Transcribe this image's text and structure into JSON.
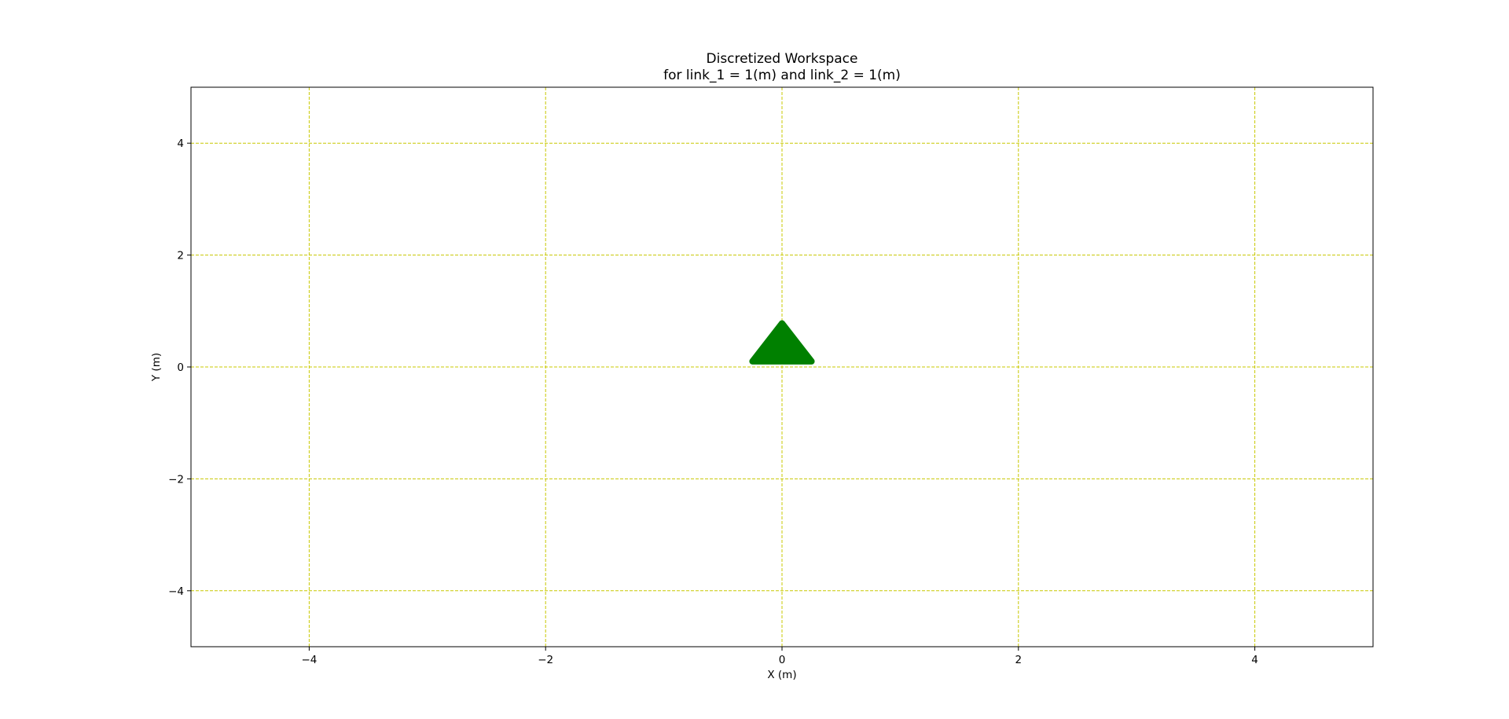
{
  "chart_data": {
    "type": "scatter",
    "title_line1": "Discretized Workspace",
    "title_line2": "for link_1 = 1(m) and link_2 = 1(m)",
    "xlabel": "X (m)",
    "ylabel": "Y (m)",
    "xlim": [
      -5,
      5
    ],
    "ylim": [
      -5,
      5
    ],
    "x_ticks": [
      -4,
      -2,
      0,
      2,
      4
    ],
    "y_ticks": [
      -4,
      -2,
      0,
      2,
      4
    ],
    "x_tick_labels": [
      "−4",
      "−2",
      "0",
      "2",
      "4"
    ],
    "y_tick_labels": [
      "−4",
      "−2",
      "0",
      "2",
      "4"
    ],
    "grid": true,
    "grid_color": "#c8c800",
    "marker_color": "#008000",
    "region": {
      "shape": "triangle",
      "vertices": [
        [
          -0.25,
          0.1
        ],
        [
          0.25,
          0.1
        ],
        [
          0.0,
          0.78
        ]
      ]
    }
  }
}
